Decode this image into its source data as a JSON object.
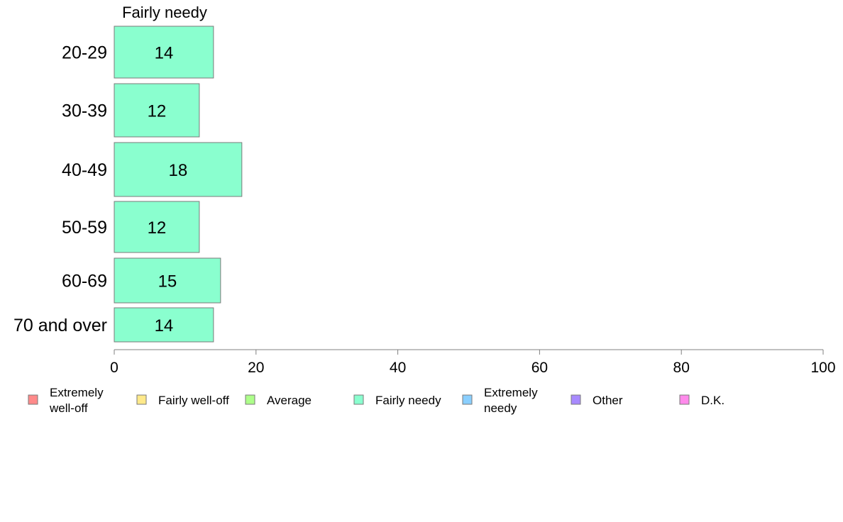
{
  "chart_data": {
    "type": "bar",
    "orientation": "horizontal",
    "title": "Fairly needy",
    "categories": [
      "20-29",
      "30-39",
      "40-49",
      "50-59",
      "60-69",
      "70 and over"
    ],
    "series": [
      {
        "name": "Fairly needy",
        "values": [
          14,
          12,
          18,
          12,
          15,
          14
        ],
        "color": "#8affcf"
      }
    ],
    "xlim": [
      0,
      100
    ],
    "xticks": [
      0,
      20,
      40,
      60,
      80,
      100
    ],
    "grid": false,
    "legend_position": "bottom",
    "legend": [
      {
        "label": [
          "Extremely",
          "well-off"
        ],
        "color": "#ff8a8a"
      },
      {
        "label": [
          "Fairly well-off"
        ],
        "color": "#ffe98a"
      },
      {
        "label": [
          "Average"
        ],
        "color": "#adff8a"
      },
      {
        "label": [
          "Fairly needy"
        ],
        "color": "#8affcf"
      },
      {
        "label": [
          "Extremely",
          "needy"
        ],
        "color": "#8acfff"
      },
      {
        "label": [
          "Other"
        ],
        "color": "#a88aff"
      },
      {
        "label": [
          "D.K."
        ],
        "color": "#ff8aeb"
      }
    ]
  }
}
